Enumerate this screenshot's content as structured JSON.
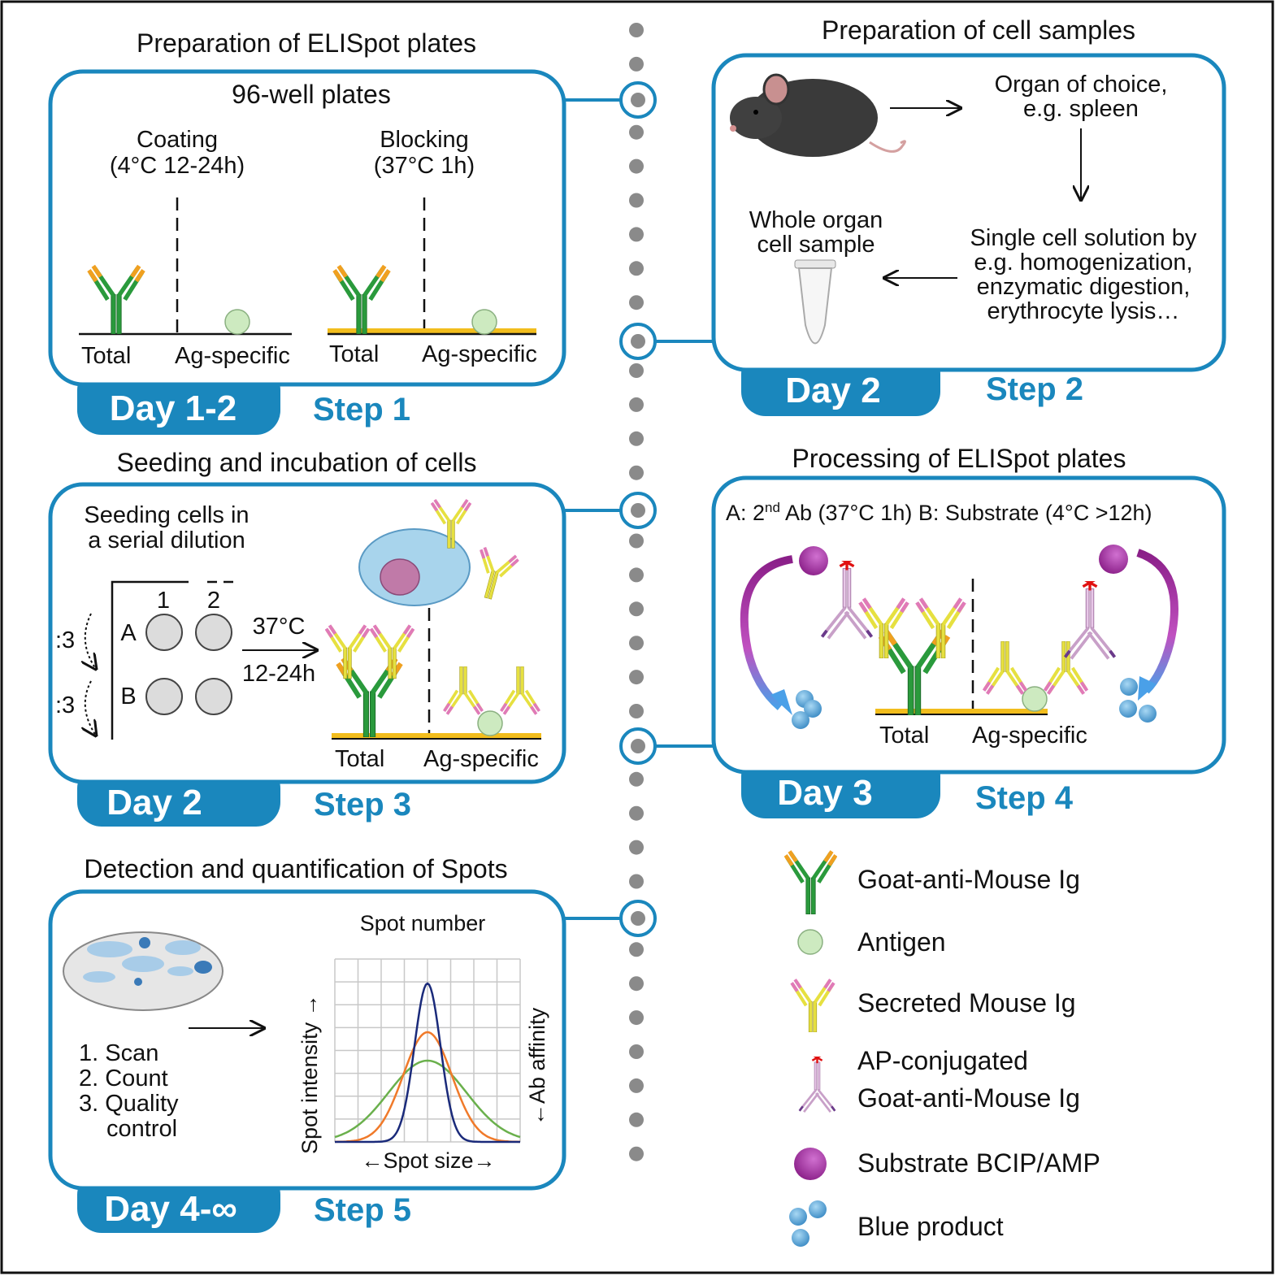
{
  "colors": {
    "accent": "#1a87bd",
    "capture_ab": "#2a9a3c",
    "capture_tip": "#f0a020",
    "secreted_ab": "#e6e040",
    "secreted_tip": "#e07ab8",
    "ap_ab": "#c8a0c8",
    "antigen": "#cdeac0",
    "plate": "#f2bd1d",
    "substrate": "#a0309a",
    "blue_product": "#5aa8d8",
    "ap_star": "#e01010"
  },
  "step1": {
    "title": "Preparation of ELISpot plates",
    "heading": "96-well plates",
    "coating": "Coating",
    "coating_cond": "(4°C 12-24h)",
    "blocking": "Blocking",
    "blocking_cond": "(37°C 1h)",
    "total": "Total",
    "ag": "Ag-specific",
    "day": "Day 1-2",
    "step": "Step 1"
  },
  "step2": {
    "title": "Preparation of cell samples",
    "organ": "Organ of choice,",
    "organ2": "e.g. spleen",
    "single1": "Single cell solution by",
    "single2": "e.g. homogenization,",
    "single3": "enzymatic digestion,",
    "single4": "erythrocyte lysis…",
    "whole1": "Whole organ",
    "whole2": "cell sample",
    "day": "Day 2",
    "step": "Step 2"
  },
  "step3": {
    "title": "Seeding and incubation of cells",
    "seed1": "Seeding cells in",
    "seed2": "a serial dilution",
    "col1": "1",
    "col2": "2",
    "rowA": "A",
    "rowB": "B",
    "dil": ":3",
    "temp": "37°C",
    "time": "12-24h",
    "total": "Total",
    "ag": "Ag-specific",
    "day": "Day 2",
    "step": "Step 3"
  },
  "step4": {
    "title": "Processing of ELISpot plates",
    "a_pre": "A: 2",
    "a_sup": "nd",
    "a_post": " Ab (37°C 1h) B: Substrate (4°C >12h)",
    "total": "Total",
    "ag": "Ag-specific",
    "day": "Day 3",
    "step": "Step 4"
  },
  "step5": {
    "title": "Detection and quantification of Spots",
    "list1": "1. Scan",
    "list2": "2. Count",
    "list3": "3. Quality",
    "list3b": "control",
    "spot_number": "Spot number",
    "ylabel": "Spot intensity →",
    "xlabel": "←Spot size→",
    "rlabel": "←Ab affinity",
    "day": "Day 4-∞",
    "step": "Step 5"
  },
  "legend": {
    "capture": "Goat-anti-Mouse Ig",
    "antigen": "Antigen",
    "secreted": "Secreted Mouse Ig",
    "ap1": "AP-conjugated",
    "ap2": "Goat-anti-Mouse Ig",
    "substrate": "Substrate BCIP/AMP",
    "blue": "Blue product"
  }
}
